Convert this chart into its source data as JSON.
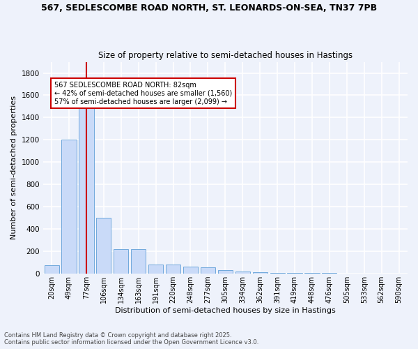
{
  "title_line1": "567, SEDLESCOMBE ROAD NORTH, ST. LEONARDS-ON-SEA, TN37 7PB",
  "title_line2": "Size of property relative to semi-detached houses in Hastings",
  "xlabel": "Distribution of semi-detached houses by size in Hastings",
  "ylabel": "Number of semi-detached properties",
  "bar_labels": [
    "20sqm",
    "49sqm",
    "77sqm",
    "106sqm",
    "134sqm",
    "163sqm",
    "191sqm",
    "220sqm",
    "248sqm",
    "277sqm",
    "305sqm",
    "334sqm",
    "362sqm",
    "391sqm",
    "419sqm",
    "448sqm",
    "476sqm",
    "505sqm",
    "533sqm",
    "562sqm",
    "590sqm"
  ],
  "bar_values": [
    75,
    1200,
    1510,
    500,
    220,
    220,
    85,
    80,
    65,
    55,
    30,
    20,
    15,
    10,
    10,
    8,
    5,
    3,
    2,
    2,
    1
  ],
  "bar_color": "#c9daf8",
  "bar_edge_color": "#6fa8dc",
  "property_bin_index": 2,
  "annotation_title": "567 SEDLESCOMBE ROAD NORTH: 82sqm",
  "annotation_line2": "← 42% of semi-detached houses are smaller (1,560)",
  "annotation_line3": "57% of semi-detached houses are larger (2,099) →",
  "red_line_color": "#cc0000",
  "annotation_box_color": "#ffffff",
  "annotation_box_edge": "#cc0000",
  "footer_line1": "Contains HM Land Registry data © Crown copyright and database right 2025.",
  "footer_line2": "Contains public sector information licensed under the Open Government Licence v3.0.",
  "bg_color": "#eef2fb",
  "grid_color": "#ffffff",
  "ylim": [
    0,
    1900
  ],
  "yticks": [
    0,
    200,
    400,
    600,
    800,
    1000,
    1200,
    1400,
    1600,
    1800
  ]
}
